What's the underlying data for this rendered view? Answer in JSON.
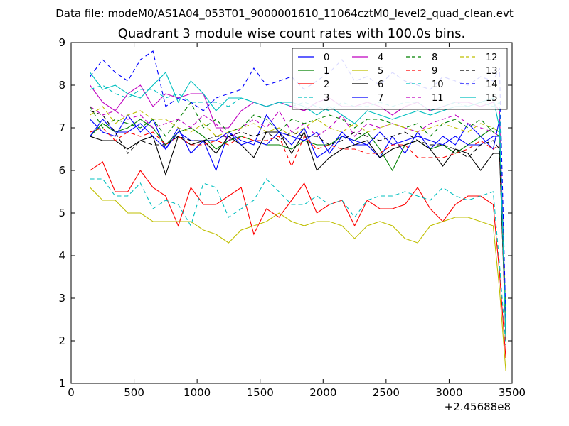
{
  "suptitle": "Data file: modeM0/AS1A04_053T01_9000001610_11064cztM0_level2_quad_clean.evt",
  "chart_data": {
    "type": "line",
    "title": "Quadrant 3 module wise count rates with 100.0s bins.",
    "xlabel": "",
    "ylabel": "",
    "x_offset_label": "+2.45688e8",
    "xlim": [
      0,
      3500
    ],
    "ylim": [
      1,
      9
    ],
    "xticks": [
      0,
      500,
      1000,
      1500,
      2000,
      2500,
      3000,
      3500
    ],
    "yticks": [
      1,
      2,
      3,
      4,
      5,
      6,
      7,
      8,
      9
    ],
    "x": [
      150,
      250,
      350,
      450,
      550,
      650,
      750,
      850,
      950,
      1050,
      1150,
      1250,
      1350,
      1450,
      1550,
      1650,
      1750,
      1850,
      1950,
      2050,
      2150,
      2250,
      2350,
      2450,
      2550,
      2650,
      2750,
      2850,
      2950,
      3050,
      3150,
      3250,
      3350,
      3400,
      3450
    ],
    "legend": {
      "position": "top-right",
      "columns": 4
    },
    "series": [
      {
        "name": "0",
        "color": "#0000ff",
        "dash": "solid",
        "values": [
          7.2,
          6.9,
          6.8,
          7.3,
          6.9,
          7.2,
          6.5,
          7.0,
          6.4,
          6.7,
          6.0,
          6.9,
          6.7,
          6.6,
          7.3,
          6.9,
          6.6,
          7.0,
          6.3,
          6.5,
          6.9,
          6.6,
          6.6,
          6.3,
          6.8,
          6.4,
          6.9,
          6.5,
          6.8,
          6.6,
          7.1,
          6.8,
          6.5,
          7.2,
          2.5
        ]
      },
      {
        "name": "1",
        "color": "#008000",
        "dash": "solid",
        "values": [
          6.8,
          7.1,
          6.9,
          7.0,
          7.2,
          7.0,
          6.6,
          6.9,
          7.0,
          6.8,
          6.5,
          6.7,
          6.8,
          6.7,
          6.6,
          6.6,
          6.5,
          6.7,
          6.6,
          6.6,
          6.8,
          6.7,
          6.9,
          6.5,
          6.0,
          6.6,
          6.7,
          6.5,
          6.6,
          6.4,
          6.6,
          6.8,
          7.0,
          6.9,
          2.0
        ]
      },
      {
        "name": "2",
        "color": "#ff0000",
        "dash": "solid",
        "values": [
          6.0,
          6.2,
          5.5,
          5.5,
          6.0,
          5.6,
          5.4,
          4.7,
          5.6,
          5.2,
          5.2,
          5.4,
          5.6,
          4.5,
          5.1,
          4.9,
          5.3,
          5.7,
          5.0,
          5.2,
          5.3,
          4.7,
          5.3,
          5.1,
          5.1,
          5.2,
          5.6,
          5.1,
          4.8,
          5.2,
          5.4,
          5.4,
          5.2,
          3.6,
          1.6
        ]
      },
      {
        "name": "3",
        "color": "#00bfbf",
        "dash": "dashed",
        "values": [
          5.8,
          5.8,
          5.4,
          5.4,
          5.7,
          5.1,
          5.3,
          5.2,
          4.7,
          5.7,
          5.6,
          4.9,
          5.1,
          5.3,
          5.8,
          5.5,
          5.2,
          5.2,
          5.4,
          5.2,
          5.3,
          4.9,
          5.3,
          5.4,
          5.4,
          5.5,
          5.4,
          5.3,
          5.6,
          5.4,
          5.3,
          5.4,
          5.5,
          3.8,
          1.9
        ]
      },
      {
        "name": "4",
        "color": "#bf00bf",
        "dash": "solid",
        "values": [
          8.0,
          7.6,
          7.4,
          7.8,
          8.0,
          7.5,
          7.8,
          7.7,
          7.8,
          7.8,
          7.0,
          7.0,
          7.4,
          7.6,
          7.5,
          7.6,
          7.5,
          7.4,
          7.6,
          7.7,
          7.5,
          7.5,
          7.6,
          7.5,
          7.3,
          7.5,
          7.6,
          7.4,
          7.5,
          7.6,
          7.6,
          7.5,
          7.6,
          7.4,
          2.3
        ]
      },
      {
        "name": "5",
        "color": "#bfbf00",
        "dash": "solid",
        "values": [
          5.6,
          5.3,
          5.3,
          5.0,
          5.0,
          4.8,
          4.8,
          4.8,
          4.8,
          4.6,
          4.5,
          4.3,
          4.6,
          4.7,
          4.8,
          5.0,
          4.8,
          4.7,
          4.8,
          4.8,
          4.7,
          4.4,
          4.7,
          4.8,
          4.7,
          4.4,
          4.3,
          4.7,
          4.8,
          4.9,
          4.9,
          4.8,
          4.7,
          3.2,
          1.3
        ]
      },
      {
        "name": "6",
        "color": "#000000",
        "dash": "solid",
        "values": [
          6.8,
          6.7,
          6.7,
          6.5,
          6.7,
          6.8,
          5.9,
          6.8,
          6.6,
          6.7,
          6.4,
          6.8,
          6.6,
          6.3,
          6.9,
          6.9,
          6.4,
          6.9,
          6.0,
          6.3,
          6.5,
          6.6,
          6.7,
          6.3,
          6.5,
          6.6,
          6.7,
          6.5,
          6.1,
          6.5,
          6.4,
          6.0,
          6.4,
          6.4,
          2.2
        ]
      },
      {
        "name": "7",
        "color": "#0000ff",
        "dash": "solid",
        "values": [
          6.8,
          7.2,
          6.9,
          6.9,
          7.1,
          6.8,
          6.5,
          6.9,
          6.7,
          6.7,
          6.7,
          6.9,
          6.6,
          6.7,
          6.6,
          6.9,
          6.8,
          6.7,
          6.9,
          6.4,
          6.8,
          6.7,
          6.6,
          6.9,
          6.6,
          6.7,
          6.8,
          6.7,
          6.6,
          6.8,
          6.6,
          6.6,
          6.8,
          6.8,
          2.4
        ]
      },
      {
        "name": "8",
        "color": "#008000",
        "dash": "dashed",
        "values": [
          7.5,
          7.0,
          7.2,
          7.1,
          7.0,
          7.2,
          6.8,
          7.2,
          7.6,
          7.0,
          7.2,
          6.9,
          7.0,
          7.3,
          7.2,
          6.9,
          7.2,
          7.1,
          7.2,
          7.3,
          7.2,
          7.0,
          7.2,
          7.2,
          7.1,
          7.0,
          7.1,
          6.8,
          7.1,
          7.2,
          7.0,
          7.2,
          6.9,
          6.8,
          2.6
        ]
      },
      {
        "name": "9",
        "color": "#ff0000",
        "dash": "dashed",
        "values": [
          6.9,
          7.0,
          6.7,
          6.9,
          6.8,
          6.9,
          6.6,
          6.8,
          6.6,
          6.6,
          6.7,
          6.6,
          6.8,
          6.7,
          6.7,
          6.8,
          6.1,
          6.8,
          6.5,
          6.6,
          6.5,
          6.5,
          6.4,
          6.4,
          6.6,
          6.6,
          6.3,
          6.3,
          6.3,
          6.4,
          6.5,
          6.7,
          6.5,
          6.6,
          2.0
        ]
      },
      {
        "name": "10",
        "color": "#00bfbf",
        "dash": "dashed",
        "values": [
          7.9,
          8.0,
          7.8,
          7.7,
          7.9,
          7.9,
          7.7,
          7.8,
          7.6,
          7.6,
          7.6,
          7.5,
          7.7,
          7.6,
          7.5,
          7.6,
          7.5,
          7.6,
          7.5,
          7.4,
          7.6,
          7.5,
          7.5,
          7.6,
          7.5,
          7.6,
          7.6,
          7.4,
          7.5,
          7.6,
          7.5,
          7.6,
          7.5,
          7.6,
          2.3
        ]
      },
      {
        "name": "11",
        "color": "#bf00bf",
        "dash": "dashed",
        "values": [
          7.5,
          7.3,
          7.4,
          7.2,
          7.3,
          7.0,
          7.1,
          7.2,
          7.0,
          7.3,
          7.1,
          6.7,
          7.0,
          7.2,
          7.0,
          7.4,
          6.9,
          7.1,
          6.8,
          7.0,
          7.3,
          6.8,
          7.1,
          7.0,
          7.1,
          7.0,
          6.9,
          7.1,
          7.2,
          7.3,
          7.1,
          7.0,
          6.9,
          6.8,
          2.1
        ]
      },
      {
        "name": "12",
        "color": "#bfbf00",
        "dash": "dashed",
        "values": [
          7.3,
          7.5,
          7.1,
          7.3,
          7.4,
          7.2,
          7.2,
          7.0,
          6.9,
          7.1,
          6.8,
          6.9,
          7.0,
          7.1,
          6.9,
          7.0,
          6.8,
          7.0,
          7.2,
          7.0,
          6.9,
          7.1,
          6.9,
          7.0,
          7.1,
          7.0,
          6.9,
          7.0,
          7.1,
          7.0,
          6.9,
          7.1,
          7.0,
          6.9,
          2.2
        ]
      },
      {
        "name": "13",
        "color": "#000000",
        "dash": "dashed",
        "values": [
          7.4,
          7.3,
          6.9,
          6.4,
          6.7,
          6.6,
          6.6,
          6.8,
          6.7,
          6.7,
          6.8,
          6.8,
          6.9,
          6.8,
          6.9,
          6.7,
          6.9,
          6.8,
          6.8,
          6.6,
          6.7,
          6.9,
          6.8,
          6.7,
          6.8,
          6.9,
          6.7,
          6.6,
          6.6,
          6.5,
          6.3,
          6.6,
          6.7,
          6.5,
          2.2
        ]
      },
      {
        "name": "14",
        "color": "#0000ff",
        "dash": "dashed",
        "values": [
          8.2,
          8.6,
          8.3,
          8.1,
          8.6,
          8.8,
          7.5,
          7.7,
          7.6,
          7.4,
          7.7,
          7.8,
          7.9,
          8.4,
          8.0,
          8.1,
          8.2,
          7.9,
          8.1,
          8.3,
          8.6,
          8.1,
          8.2,
          8.0,
          8.3,
          8.1,
          8.0,
          7.9,
          8.2,
          8.1,
          8.0,
          8.2,
          8.1,
          8.4,
          2.5
        ]
      },
      {
        "name": "15",
        "color": "#00bfbf",
        "dash": "solid",
        "values": [
          8.3,
          7.9,
          8.0,
          7.8,
          7.7,
          8.0,
          8.3,
          7.6,
          8.1,
          7.8,
          7.4,
          7.7,
          7.7,
          7.6,
          7.5,
          7.6,
          7.6,
          7.5,
          7.3,
          7.5,
          7.3,
          7.1,
          7.4,
          7.3,
          7.2,
          7.3,
          7.4,
          7.3,
          7.4,
          7.5,
          7.5,
          7.6,
          7.7,
          7.0,
          2.1
        ]
      }
    ]
  }
}
